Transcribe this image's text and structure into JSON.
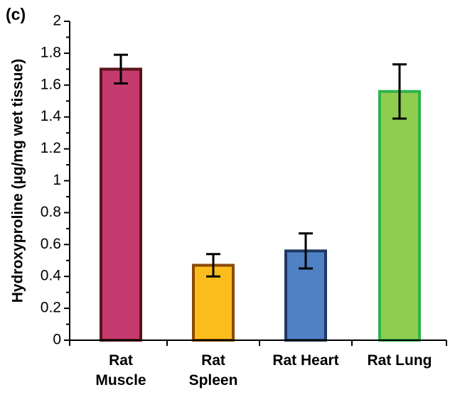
{
  "panel_label": "(c)",
  "chart_data": {
    "type": "bar",
    "categories": [
      {
        "lines": [
          "Rat",
          "Muscle"
        ]
      },
      {
        "lines": [
          "Rat",
          "Spleen"
        ]
      },
      {
        "lines": [
          "Rat Heart"
        ]
      },
      {
        "lines": [
          "Rat Lung"
        ]
      }
    ],
    "values": [
      1.7,
      0.47,
      0.56,
      1.56
    ],
    "errors": [
      0.09,
      0.07,
      0.11,
      0.17
    ],
    "ylabel": "Hydroxyproline (µg/mg wet tissue)",
    "xlabel": "",
    "ylim": [
      0,
      2
    ],
    "yticks": [
      0,
      0.2,
      0.4,
      0.6,
      0.8,
      1,
      1.2,
      1.4,
      1.6,
      1.8,
      2
    ],
    "ytick_labels": [
      "0",
      "0.2",
      "0.4",
      "0.6",
      "0.8",
      "1",
      "1.2",
      "1.4",
      "1.6",
      "1.8",
      "2"
    ],
    "minor_ticks_per_interval": 1,
    "grid": false,
    "bar_fill_colors": [
      "#c43a6e",
      "#fbbd1c",
      "#4f81c4",
      "#8fcd50"
    ],
    "bar_edge_colors": [
      "#5a1418",
      "#8a4a08",
      "#1f3864",
      "#2fb34a"
    ]
  }
}
